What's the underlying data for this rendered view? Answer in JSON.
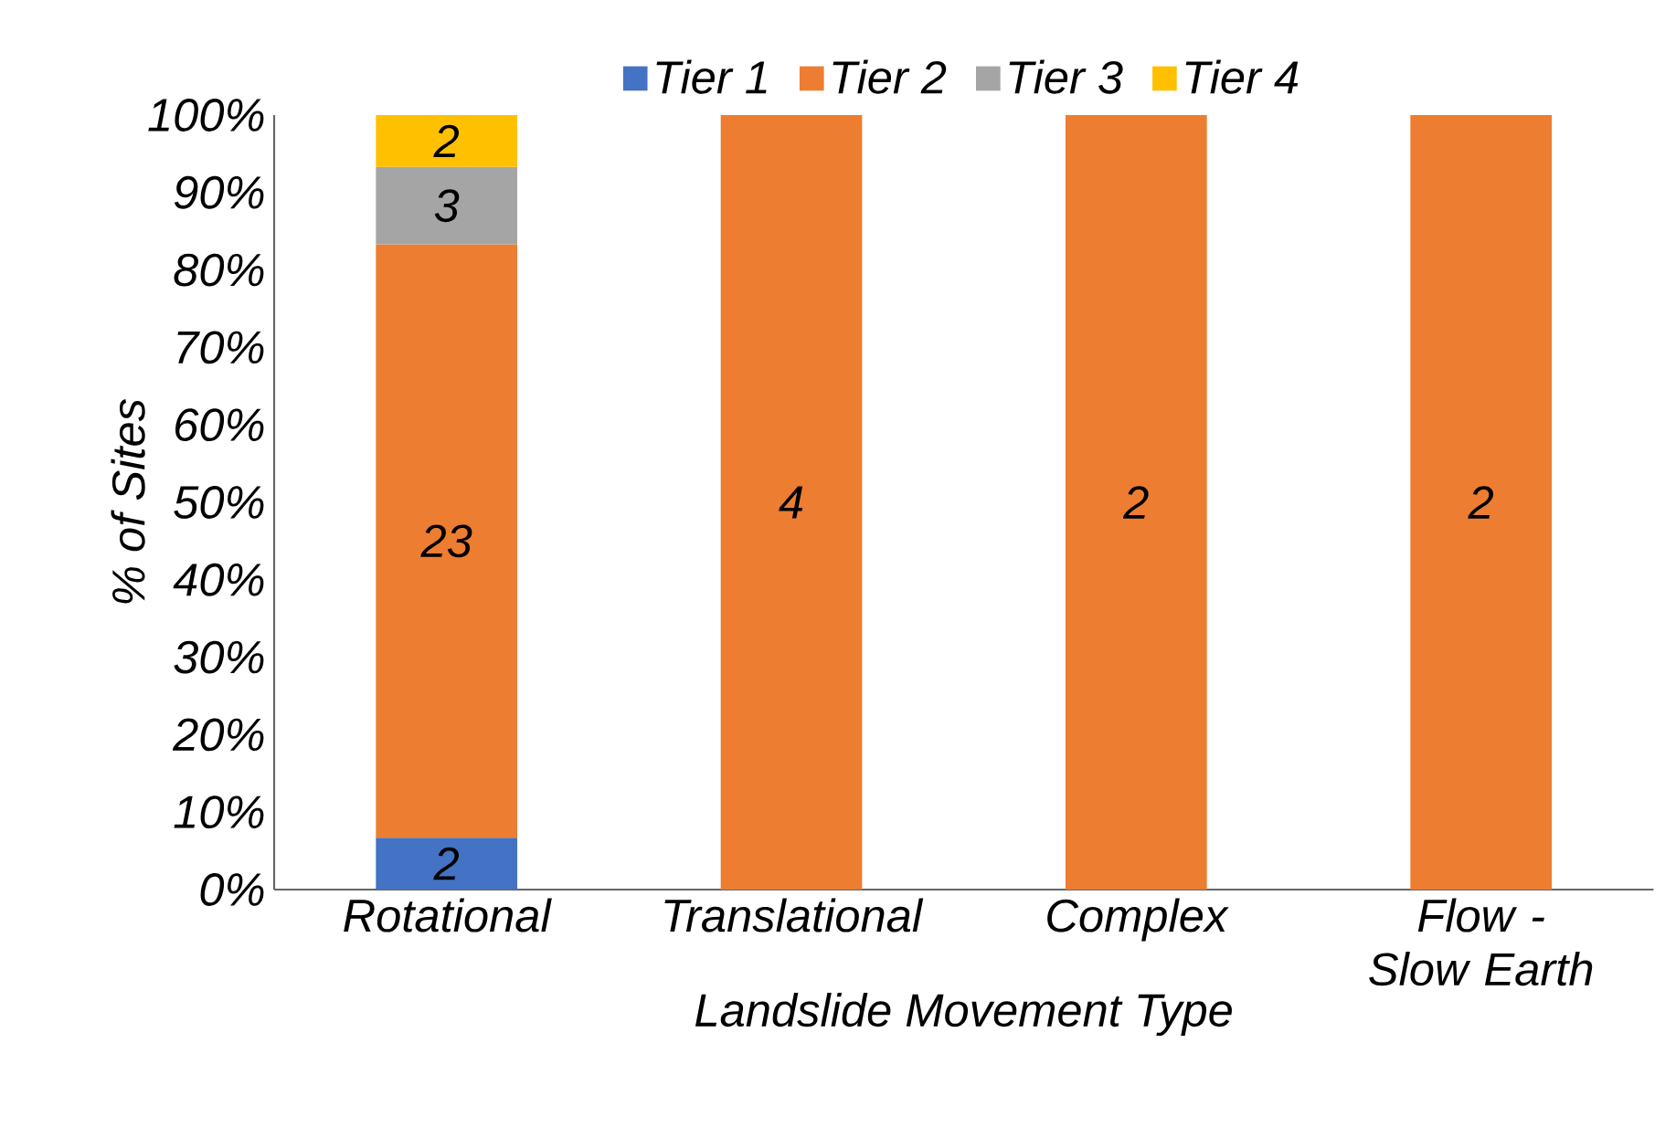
{
  "chart_data": {
    "type": "bar",
    "stacked": true,
    "xlabel": "Landslide Movement Type",
    "ylabel": "% of Sites",
    "categories": [
      "Rotational",
      "Translational",
      "Complex",
      "Flow - Slow Earth"
    ],
    "series": [
      {
        "name": "Tier 1",
        "color": "#4472c4",
        "values": [
          6.7,
          null,
          null,
          null
        ]
      },
      {
        "name": "Tier 2",
        "color": "#ed7d31",
        "values": [
          76.6,
          100,
          100,
          100
        ]
      },
      {
        "name": "Tier 3",
        "color": "#a5a5a5",
        "values": [
          10,
          null,
          null,
          null
        ]
      },
      {
        "name": "Tier 4",
        "color": "#ffc000",
        "values": [
          6.7,
          null,
          null,
          null
        ]
      }
    ],
    "annotations": [
      "2",
      "23",
      "3",
      "2",
      "4",
      "2",
      "2"
    ],
    "ylim": [
      0,
      100
    ],
    "yticks": [
      {
        "value": 0,
        "label": "0%"
      },
      {
        "value": 10,
        "label": "10%"
      },
      {
        "value": 20,
        "label": "20%"
      },
      {
        "value": 30,
        "label": "30%"
      },
      {
        "value": 40,
        "label": "40%"
      },
      {
        "value": 50,
        "label": "50%"
      },
      {
        "value": 60,
        "label": "60%"
      },
      {
        "value": 70,
        "label": "70%"
      },
      {
        "value": 80,
        "label": "80%"
      },
      {
        "value": 90,
        "label": "90%"
      },
      {
        "value": 100,
        "label": "100%"
      }
    ],
    "legend": "top",
    "grid": false
  }
}
